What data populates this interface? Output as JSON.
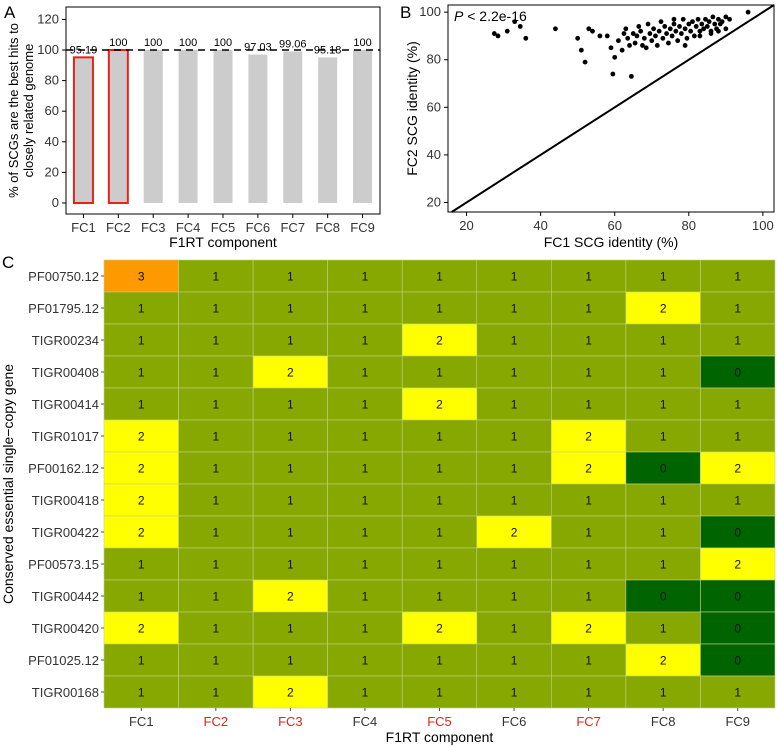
{
  "chart_data": [
    {
      "panel": "A",
      "type": "bar",
      "ylabel": "% of SCGs are the best hits to closely related genome",
      "ylabel_lines": [
        "% of SCGs are the best hits to",
        "closely related genome"
      ],
      "xlabel": "F1RT component",
      "categories": [
        "FC1",
        "FC2",
        "FC3",
        "FC4",
        "FC5",
        "FC6",
        "FC7",
        "FC8",
        "FC9"
      ],
      "values": [
        95.19,
        100,
        100,
        100,
        100,
        97.03,
        99.06,
        95.18,
        100
      ],
      "value_labels": [
        "95.19",
        "100",
        "100",
        "100",
        "100",
        "97.03",
        "99.06",
        "95.18",
        "100"
      ],
      "highlighted": [
        "FC1",
        "FC2"
      ],
      "reference_line": 100,
      "ylim": [
        0,
        120
      ],
      "yticks": [
        0,
        20,
        40,
        60,
        80,
        100,
        120
      ],
      "colors": {
        "bar": "#cccccc",
        "highlight_outline": "#e8211b",
        "reference_line": "#000000"
      }
    },
    {
      "panel": "B",
      "type": "scatter",
      "annotation_prefix": "P",
      "annotation_rest": " < 2.2e-16",
      "xlabel": "FC1 SCG identity (%)",
      "ylabel": "FC2 SCG identity (%)",
      "xlim": [
        15,
        103
      ],
      "ylim": [
        16,
        103
      ],
      "xticks": [
        20,
        40,
        60,
        80,
        100
      ],
      "yticks": [
        20,
        40,
        60,
        80,
        100
      ],
      "diagonal": "y = x",
      "points": [
        [
          27.5,
          91
        ],
        [
          28.5,
          90
        ],
        [
          31,
          92
        ],
        [
          33,
          96
        ],
        [
          34.5,
          94
        ],
        [
          36,
          89
        ],
        [
          44,
          93
        ],
        [
          50,
          89
        ],
        [
          51,
          84
        ],
        [
          52,
          79
        ],
        [
          53,
          93
        ],
        [
          54,
          92
        ],
        [
          56,
          90
        ],
        [
          58,
          90
        ],
        [
          59,
          85
        ],
        [
          59.5,
          74
        ],
        [
          60,
          81
        ],
        [
          61,
          88
        ],
        [
          62,
          84
        ],
        [
          62.5,
          91
        ],
        [
          63,
          93
        ],
        [
          63.5,
          89
        ],
        [
          64,
          86
        ],
        [
          64.5,
          73
        ],
        [
          65,
          91
        ],
        [
          65.5,
          87
        ],
        [
          66,
          90
        ],
        [
          66.5,
          94
        ],
        [
          67,
          92
        ],
        [
          67.5,
          86
        ],
        [
          68,
          89
        ],
        [
          68.5,
          85
        ],
        [
          69,
          95
        ],
        [
          69.5,
          91
        ],
        [
          70,
          88
        ],
        [
          70.5,
          93
        ],
        [
          71,
          90
        ],
        [
          71.5,
          86
        ],
        [
          72,
          92
        ],
        [
          72.5,
          96
        ],
        [
          73,
          89
        ],
        [
          73.5,
          94
        ],
        [
          74,
          91
        ],
        [
          74.5,
          87
        ],
        [
          75,
          93
        ],
        [
          75.5,
          90
        ],
        [
          76,
          95
        ],
        [
          76.5,
          92
        ],
        [
          77,
          88
        ],
        [
          77.5,
          94
        ],
        [
          78,
          91
        ],
        [
          78.5,
          97
        ],
        [
          79,
          93
        ],
        [
          79.5,
          89
        ],
        [
          80,
          95
        ],
        [
          80.5,
          92
        ],
        [
          81,
          96
        ],
        [
          81.5,
          90
        ],
        [
          82,
          94
        ],
        [
          82.5,
          97
        ],
        [
          83,
          92
        ],
        [
          83.5,
          95
        ],
        [
          84,
          93
        ],
        [
          84.5,
          97
        ],
        [
          85,
          94
        ],
        [
          85.5,
          96
        ],
        [
          86,
          91
        ],
        [
          86.5,
          98
        ],
        [
          87,
          95
        ],
        [
          87.5,
          93
        ],
        [
          88,
          97
        ],
        [
          88.5,
          95
        ],
        [
          89,
          96
        ],
        [
          90,
          98
        ],
        [
          91,
          97
        ],
        [
          96,
          100
        ],
        [
          79,
          86
        ],
        [
          76,
          97
        ],
        [
          83,
          90
        ],
        [
          86,
          92
        ],
        [
          88,
          92
        ],
        [
          90,
          93
        ]
      ]
    },
    {
      "panel": "C",
      "type": "heatmap",
      "xlabel": "F1RT component",
      "ylabel": "Conserved essential single−copy gene",
      "columns": [
        "FC1",
        "FC2",
        "FC3",
        "FC4",
        "FC5",
        "FC6",
        "FC7",
        "FC8",
        "FC9"
      ],
      "highlighted_columns": [
        "FC2",
        "FC3",
        "FC5",
        "FC7"
      ],
      "rows": [
        "PF00750.12",
        "PF01795.12",
        "TIGR00234",
        "TIGR00408",
        "TIGR00414",
        "TIGR01017",
        "PF00162.12",
        "TIGR00418",
        "TIGR00422",
        "PF00573.15",
        "TIGR00442",
        "TIGR00420",
        "PF01025.12",
        "TIGR00168"
      ],
      "values": [
        [
          3,
          1,
          1,
          1,
          1,
          1,
          1,
          1,
          1
        ],
        [
          1,
          1,
          1,
          1,
          1,
          1,
          1,
          2,
          1
        ],
        [
          1,
          1,
          1,
          1,
          2,
          1,
          1,
          1,
          1
        ],
        [
          1,
          1,
          2,
          1,
          1,
          1,
          1,
          1,
          0
        ],
        [
          1,
          1,
          1,
          1,
          2,
          1,
          1,
          1,
          1
        ],
        [
          2,
          1,
          1,
          1,
          1,
          1,
          2,
          1,
          1
        ],
        [
          2,
          1,
          1,
          1,
          1,
          1,
          2,
          0,
          2
        ],
        [
          2,
          1,
          1,
          1,
          1,
          1,
          1,
          1,
          1
        ],
        [
          2,
          1,
          1,
          1,
          1,
          2,
          1,
          1,
          0
        ],
        [
          1,
          1,
          1,
          1,
          1,
          1,
          1,
          1,
          2
        ],
        [
          1,
          1,
          2,
          1,
          1,
          1,
          1,
          0,
          0
        ],
        [
          2,
          1,
          1,
          1,
          2,
          1,
          2,
          1,
          0
        ],
        [
          1,
          1,
          1,
          1,
          1,
          1,
          1,
          2,
          0
        ],
        [
          1,
          1,
          2,
          1,
          1,
          1,
          1,
          1,
          1
        ]
      ],
      "value_colors": {
        "0": "#006400",
        "1": "#86a800",
        "2": "#ffff00",
        "3": "#ff9900"
      },
      "highlight_label_color": "#e8211b"
    }
  ],
  "panels": {
    "a": "A",
    "b": "B",
    "c": "C"
  }
}
